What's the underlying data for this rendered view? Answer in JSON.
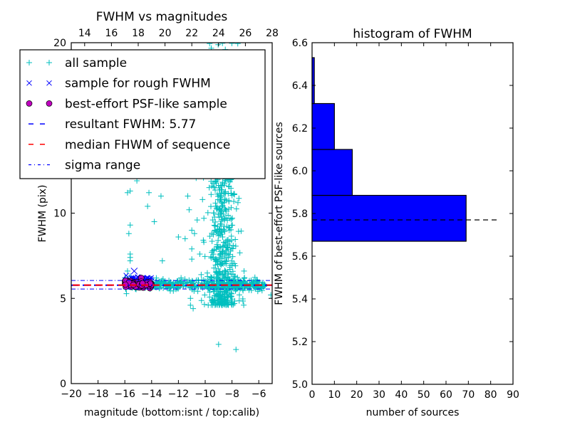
{
  "chart_data": [
    {
      "type": "scatter",
      "title": "FWHM vs magnitudes",
      "xlabel": "magnitude (bottom:isnt / top:calib)",
      "ylabel": "FWHM (pix)",
      "xlim": [
        -20,
        -5
      ],
      "ylim": [
        0,
        20
      ],
      "top_xlim": [
        13,
        28
      ],
      "x_ticks": [
        "−20",
        "−18",
        "−16",
        "−14",
        "−12",
        "−10",
        "−8",
        "−6"
      ],
      "x_tick_values": [
        -20,
        -18,
        -16,
        -14,
        -12,
        -10,
        -8,
        -6
      ],
      "top_x_ticks": [
        "14",
        "16",
        "18",
        "20",
        "22",
        "24",
        "26",
        "28"
      ],
      "top_x_tick_values": [
        14,
        16,
        18,
        20,
        22,
        24,
        26,
        28
      ],
      "y_ticks": [
        "0",
        "5",
        "10",
        "20"
      ],
      "y_tick_values": [
        0,
        5,
        10,
        20
      ],
      "grid": false,
      "legend_position": "top-left",
      "legend": [
        {
          "label": "all sample",
          "marker": "plus",
          "color": "#00bfbf"
        },
        {
          "label": "sample for rough FWHM",
          "marker": "x",
          "color": "#0000ff"
        },
        {
          "label": "best-effort PSF-like sample",
          "marker": "circle",
          "color": "#bf00bf"
        },
        {
          "label": "resultant FWHM: 5.77",
          "marker": "dashed",
          "color": "#0000ff"
        },
        {
          "label": "median FHWM of sequence",
          "marker": "dashed",
          "color": "#ff0000"
        },
        {
          "label": "sigma range",
          "marker": "dashdot",
          "color": "#0000ff"
        }
      ],
      "hlines": {
        "resultant_fwhm": 5.77,
        "median_fwhm": 5.78,
        "sigma_low": 5.55,
        "sigma_high": 6.05
      },
      "series": [
        {
          "name": "all sample",
          "points": [
            [
              -15.7,
              14.3
            ],
            [
              -15.4,
              15.1
            ],
            [
              -15.9,
              13.8
            ],
            [
              -15.1,
              11.9
            ],
            [
              -15.8,
              11.2
            ],
            [
              -15.6,
              11.3
            ],
            [
              -14.2,
              11.2
            ],
            [
              -14.3,
              10.4
            ],
            [
              -13.8,
              9.5
            ],
            [
              -15.6,
              9.3
            ],
            [
              -15.7,
              8.8
            ],
            [
              -15.6,
              7.6
            ],
            [
              -15.6,
              7.4
            ],
            [
              -15.6,
              7.2
            ],
            [
              -15.8,
              6.6
            ],
            [
              -15.6,
              6.3
            ],
            [
              -13.2,
              7.2
            ],
            [
              -11.8,
              6.2
            ],
            [
              -13.3,
              11.0
            ],
            [
              -11.3,
              11.0
            ],
            [
              -11.2,
              10.2
            ],
            [
              -11.0,
              9.0
            ],
            [
              -10.8,
              8.8
            ],
            [
              -11.5,
              8.5
            ],
            [
              -11.0,
              7.9
            ],
            [
              -12.0,
              8.6
            ],
            [
              -11.0,
              7.3
            ],
            [
              -9.6,
              12.8
            ],
            [
              -9.7,
              11.5
            ],
            [
              -7.1,
              6.6
            ],
            [
              -6.4,
              6.0
            ],
            [
              -5.1,
              5.2
            ],
            [
              -11.1,
              5.0
            ],
            [
              -11.1,
              4.6
            ],
            [
              -10.9,
              4.4
            ],
            [
              -9.0,
              2.3
            ],
            [
              -7.7,
              2.0
            ],
            [
              -10.2,
              10.8
            ],
            [
              -10.6,
              9.6
            ],
            [
              -10.1,
              8.3
            ],
            [
              -10.4,
              7.6
            ],
            [
              -9.9,
              13.3
            ],
            [
              -10.5,
              14.5
            ],
            [
              -9.3,
              16.5
            ],
            [
              -8.9,
              18.8
            ],
            [
              -9.5,
              19.4
            ],
            [
              -8.5,
              19.6
            ],
            [
              -10.0,
              18.2
            ]
          ],
          "clusters": [
            {
              "desc": "horizontal band",
              "x_range": [
                -16,
                -5.5
              ],
              "y_center": 5.8,
              "y_sigma": 0.15,
              "n": 420
            },
            {
              "desc": "vertical plume",
              "x_center": -8.7,
              "x_sigma": 0.45,
              "y_range": [
                4.6,
                13.5
              ],
              "n": 520
            },
            {
              "desc": "upper plume",
              "x_center": -9.0,
              "x_sigma": 0.6,
              "y_range": [
                12.0,
                20.0
              ],
              "n": 90
            }
          ]
        },
        {
          "name": "sample for rough FWHM",
          "points": [
            [
              -15.3,
              6.6
            ]
          ],
          "clusters": [
            {
              "desc": "rough sample",
              "x_range": [
                -16,
                -14
              ],
              "y_center": 6.0,
              "y_sigma": 0.15,
              "n": 60
            }
          ]
        },
        {
          "name": "best-effort PSF-like sample",
          "clusters": [
            {
              "desc": "psf-like sample",
              "x_range": [
                -16,
                -14
              ],
              "y_center": 5.85,
              "y_sigma": 0.1,
              "n": 98
            }
          ]
        }
      ]
    },
    {
      "type": "bar",
      "orientation": "horizontal",
      "title": "histogram of FWHM",
      "xlabel": "number of sources",
      "ylabel": "FWHM of best-effort PSF-like sources",
      "xlim": [
        0,
        90
      ],
      "ylim": [
        5.0,
        6.6
      ],
      "x_ticks": [
        "0",
        "10",
        "20",
        "30",
        "40",
        "50",
        "60",
        "70",
        "80",
        "90"
      ],
      "x_tick_values": [
        0,
        10,
        20,
        30,
        40,
        50,
        60,
        70,
        80,
        90
      ],
      "y_ticks": [
        "5.0",
        "5.2",
        "5.4",
        "5.6",
        "5.8",
        "6.0",
        "6.2",
        "6.4",
        "6.6"
      ],
      "y_tick_values": [
        5.0,
        5.2,
        5.4,
        5.6,
        5.8,
        6.0,
        6.2,
        6.4,
        6.6
      ],
      "grid": false,
      "color": "#0000ff",
      "bins": [
        {
          "low": 5.67,
          "high": 5.885,
          "count": 69
        },
        {
          "low": 5.885,
          "high": 6.1,
          "count": 18
        },
        {
          "low": 6.1,
          "high": 6.315,
          "count": 10
        },
        {
          "low": 6.315,
          "high": 6.53,
          "count": 1
        }
      ],
      "hline": {
        "value": 5.77,
        "x_range": [
          0,
          83
        ],
        "style": "dashed",
        "color": "#000000"
      }
    }
  ]
}
